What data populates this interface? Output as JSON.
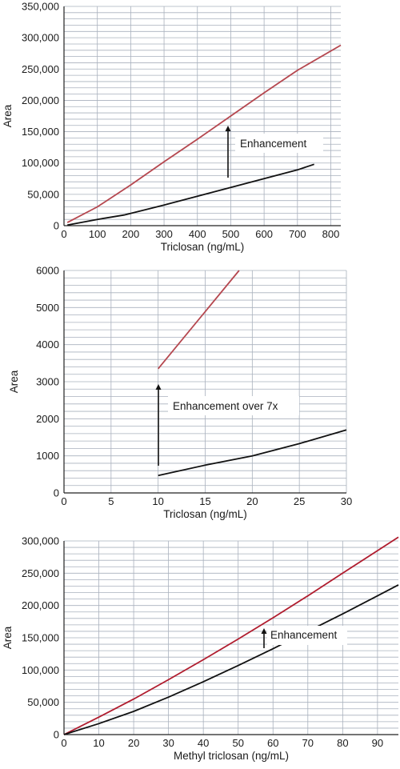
{
  "chart_data": [
    {
      "type": "line",
      "xlabel": "Triclosan (ng/mL)",
      "ylabel": "Area",
      "xlim": [
        0,
        830
      ],
      "ylim": [
        0,
        350000
      ],
      "x_ticks": [
        "0",
        "100",
        "200",
        "300",
        "400",
        "500",
        "600",
        "700",
        "800"
      ],
      "y_ticks": [
        "0",
        "50,000",
        "100,000",
        "150,000",
        "200,000",
        "250,000",
        "300,000",
        "350,000"
      ],
      "grid": true,
      "annotation": "Enhancement",
      "series": [
        {
          "color": "#b5474f",
          "x": [
            10,
            100,
            200,
            300,
            400,
            500,
            600,
            700,
            830
          ],
          "y": [
            5000,
            30000,
            65000,
            102000,
            138000,
            175000,
            212000,
            248000,
            288000
          ]
        },
        {
          "color": "#111111",
          "x": [
            10,
            100,
            180,
            300,
            400,
            500,
            600,
            700,
            750
          ],
          "y": [
            1000,
            10000,
            17000,
            33000,
            47000,
            61000,
            75000,
            89000,
            98000
          ]
        }
      ]
    },
    {
      "type": "line",
      "xlabel": "Triclosan (ng/mL)",
      "ylabel": "Area",
      "xlim": [
        0,
        30
      ],
      "ylim": [
        0,
        6000
      ],
      "x_ticks": [
        "0",
        "5",
        "10",
        "15",
        "20",
        "25",
        "30"
      ],
      "y_ticks": [
        "0",
        "1000",
        "2000",
        "3000",
        "4000",
        "5000",
        "6000"
      ],
      "grid": true,
      "annotation": "Enhancement over 7x",
      "series": [
        {
          "color": "#b5474f",
          "x": [
            10,
            18.6
          ],
          "y": [
            3350,
            6000
          ]
        },
        {
          "color": "#111111",
          "x": [
            10,
            15,
            20,
            25,
            30
          ],
          "y": [
            470,
            750,
            1000,
            1330,
            1700
          ]
        }
      ]
    },
    {
      "type": "line",
      "xlabel": "Methyl triclosan (ng/mL)",
      "ylabel": "Area",
      "xlim": [
        0,
        96
      ],
      "ylim": [
        0,
        300000
      ],
      "x_ticks": [
        "0",
        "10",
        "20",
        "30",
        "40",
        "50",
        "60",
        "70",
        "80",
        "90"
      ],
      "y_ticks": [
        "0",
        "50,000",
        "100,000",
        "150,000",
        "200,000",
        "250,000",
        "300,000"
      ],
      "grid": true,
      "annotation": "Enhancement",
      "series": [
        {
          "color": "#b01c2e",
          "x": [
            0,
            10,
            20,
            30,
            40,
            50,
            60,
            70,
            80,
            90,
            96
          ],
          "y": [
            0,
            27000,
            55000,
            85000,
            116000,
            148000,
            181000,
            215000,
            250000,
            285000,
            306000
          ]
        },
        {
          "color": "#111111",
          "x": [
            0,
            10,
            20,
            30,
            40,
            50,
            60,
            70,
            80,
            90,
            96
          ],
          "y": [
            0,
            17000,
            36000,
            58000,
            82000,
            107000,
            133000,
            160000,
            187000,
            215000,
            232000
          ]
        }
      ]
    }
  ]
}
